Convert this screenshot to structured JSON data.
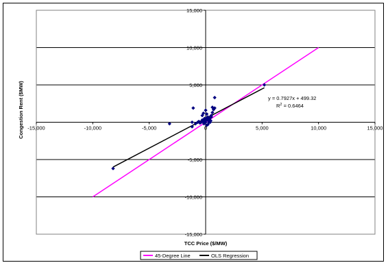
{
  "chart_data": {
    "type": "scatter",
    "xlabel": "TCC Price ($/MW)",
    "ylabel": "Congestion Rent ($MW)",
    "xlim": [
      -15000,
      15000
    ],
    "ylim": [
      -15000,
      15000
    ],
    "xticks": [
      -15000,
      -10000,
      -5000,
      0,
      5000,
      10000,
      15000
    ],
    "yticks": [
      -15000,
      -10000,
      -5000,
      0,
      5000,
      10000,
      15000
    ],
    "xtick_labels": [
      "-15,000",
      "-10,000",
      "-5,000",
      "0",
      "5,000",
      "10,000",
      "15,000"
    ],
    "ytick_labels": [
      "-15,000",
      "-10,000",
      "-5,000",
      "0",
      "5,000",
      "10,000",
      "15,000"
    ],
    "grid": "horizontal",
    "legend_position": "bottom",
    "points": {
      "color": "#000080",
      "x": [
        -8200,
        5200,
        -3200,
        -1200,
        -1100,
        -900,
        -700,
        -600,
        -500,
        -400,
        -300,
        -250,
        -200,
        -150,
        -100,
        -50,
        0,
        50,
        100,
        150,
        200,
        250,
        300,
        350,
        400,
        450,
        500,
        600,
        700,
        800,
        -1200,
        600,
        800,
        200,
        100,
        -100,
        300,
        400,
        -300,
        -200,
        0,
        100,
        500
      ],
      "y": [
        -6200,
        5000,
        -200,
        -600,
        1900,
        -200,
        0,
        100,
        -100,
        0,
        300,
        200,
        0,
        -200,
        100,
        200,
        0,
        300,
        1100,
        400,
        700,
        200,
        0,
        500,
        600,
        200,
        900,
        1300,
        1700,
        1900,
        0,
        2000,
        3300,
        -300,
        -400,
        500,
        400,
        0,
        900,
        1200,
        1600,
        600,
        700
      ]
    },
    "series": [
      {
        "name": "45-Degree Line",
        "color": "#ff00ff",
        "x": [
          -10000,
          10000
        ],
        "y": [
          -10000,
          10000
        ]
      },
      {
        "name": "OLS Regression",
        "color": "#000000",
        "x": [
          -8200,
          5200
        ],
        "y": [
          -6000.82,
          4621.36
        ]
      }
    ],
    "annotations": {
      "equation": "y = 0.7927x + 499.32",
      "r2_prefix": "R",
      "r2_sup": "2",
      "r2_value": " = 0.6464"
    }
  }
}
